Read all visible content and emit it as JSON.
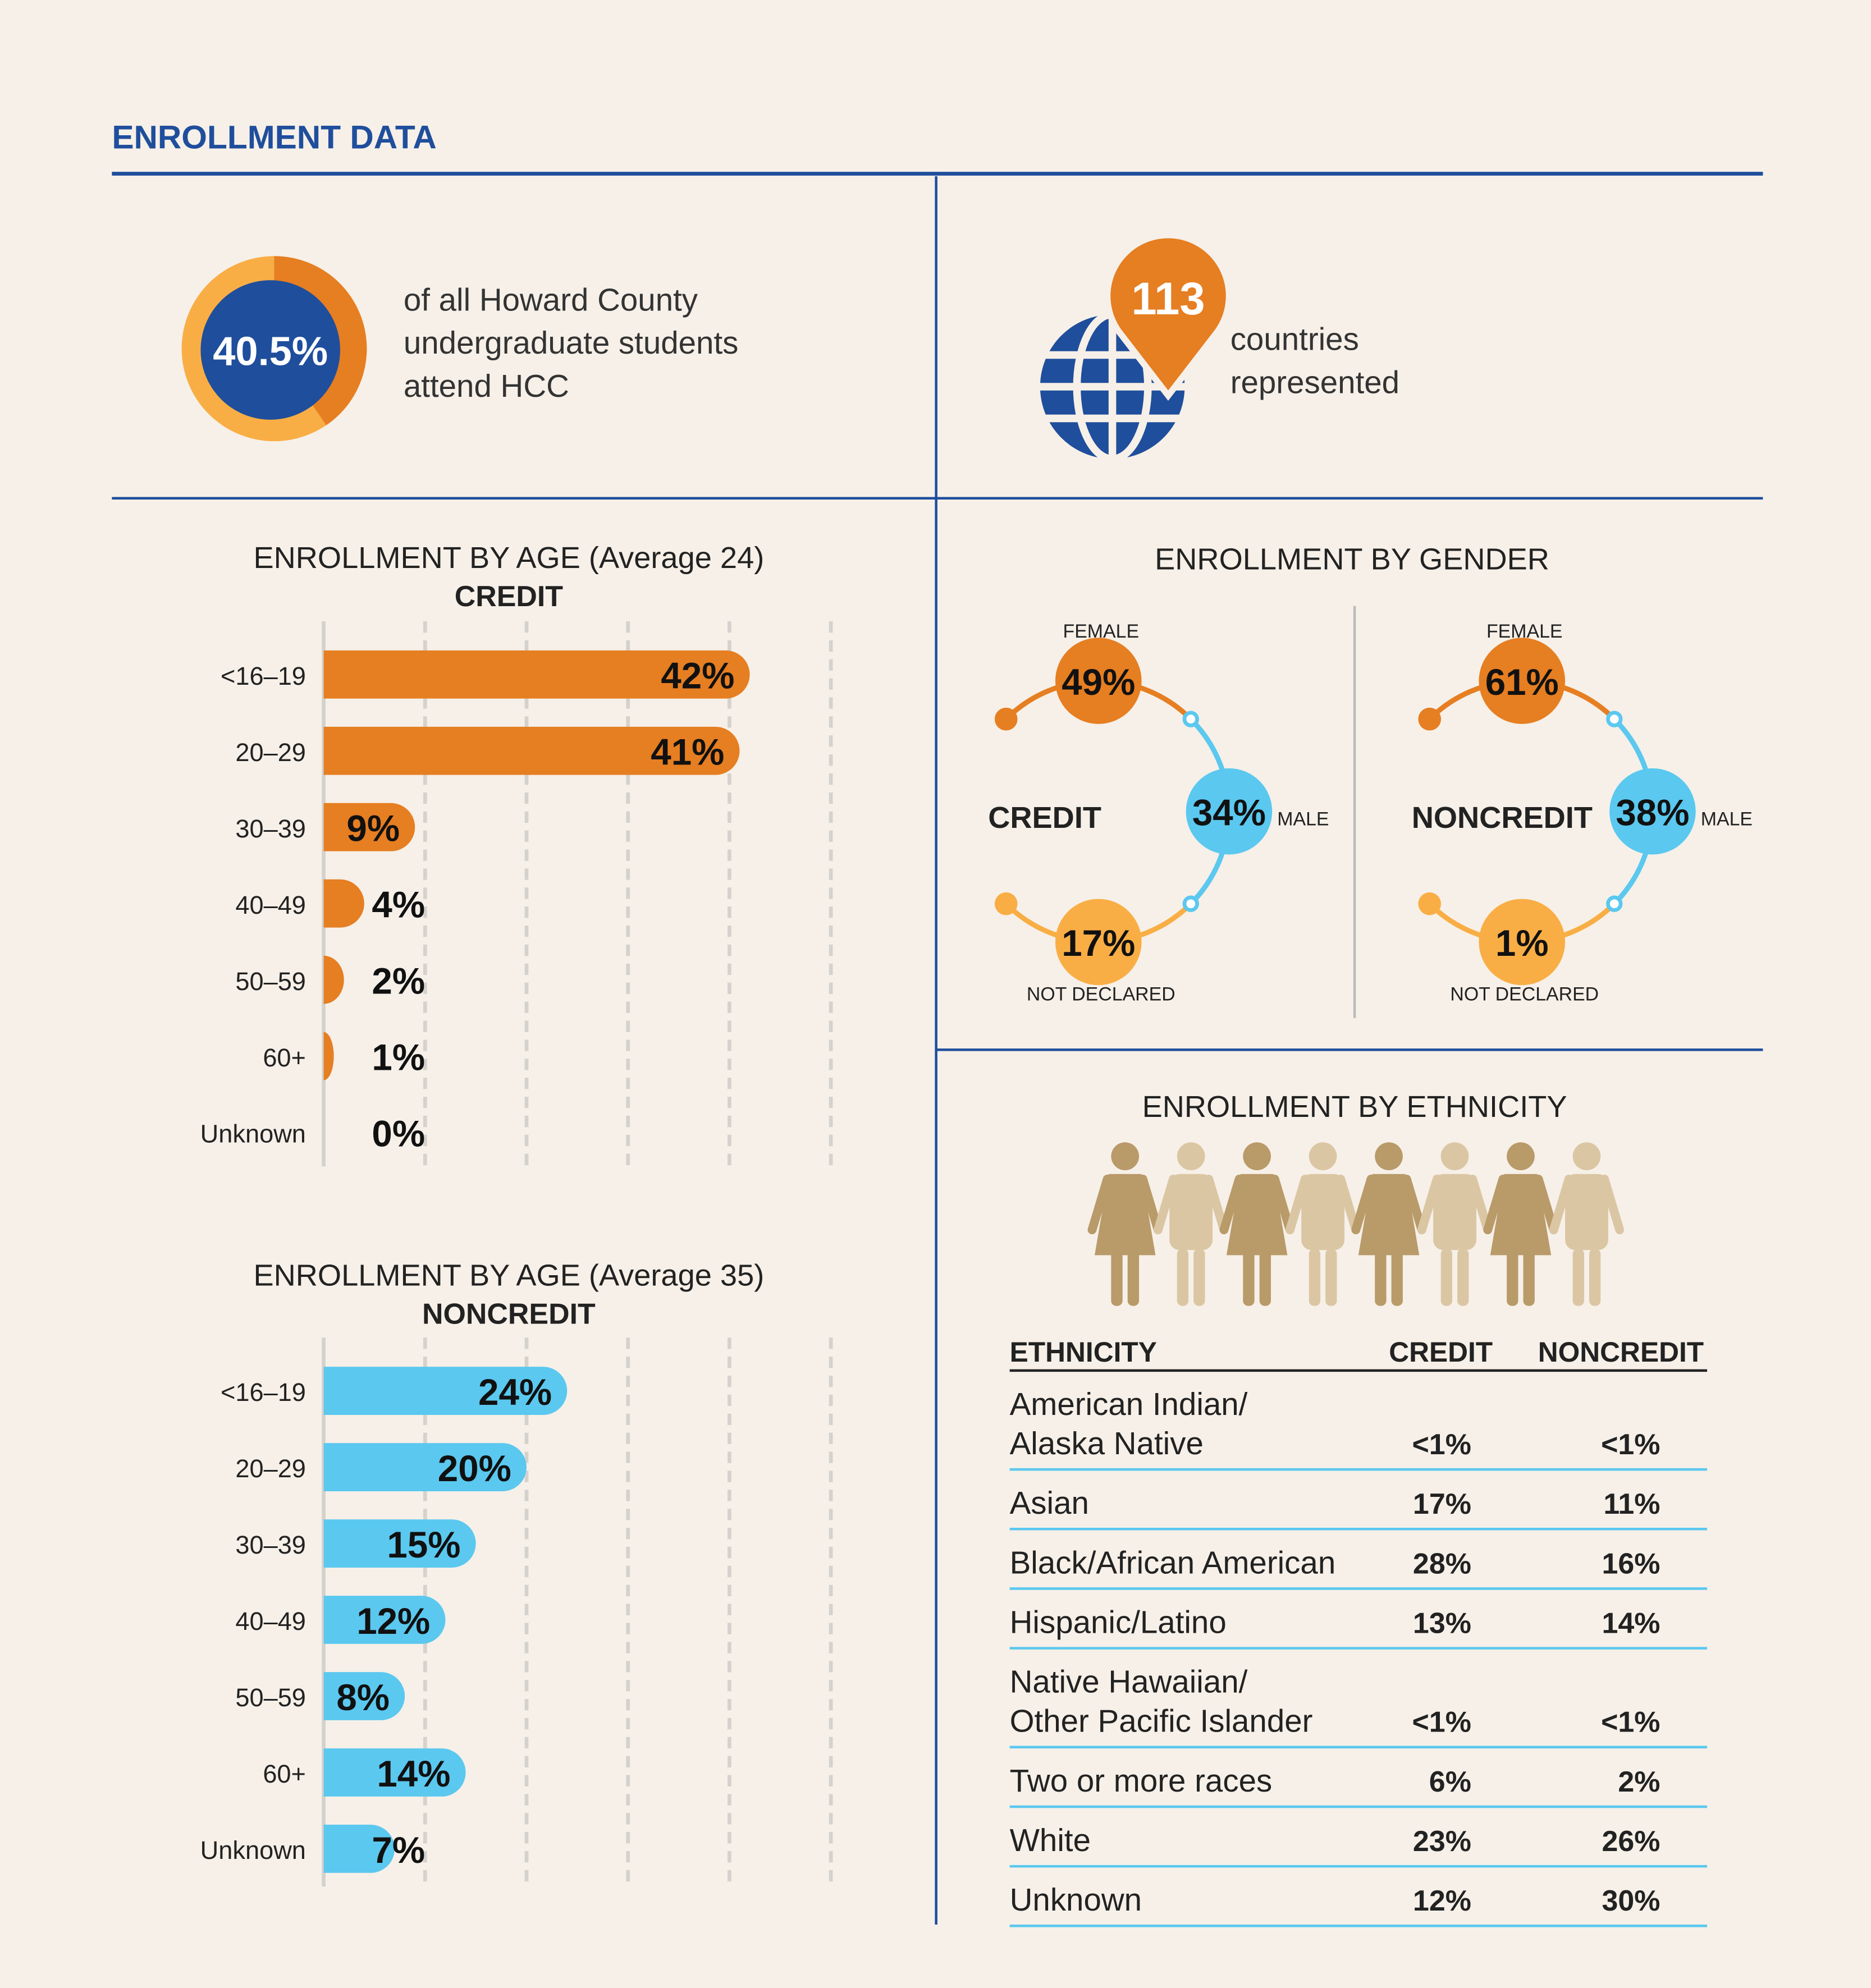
{
  "header": {
    "title": "ENROLLMENT DATA"
  },
  "share": {
    "value": 40.5,
    "value_label": "40.5%",
    "lines": [
      "of all Howard County",
      "undergraduate students",
      "attend HCC"
    ]
  },
  "countries": {
    "value": 113,
    "lines": [
      "countries",
      "represented"
    ]
  },
  "gender_section": {
    "title": "ENROLLMENT BY GENDER"
  },
  "chart_data": [
    {
      "type": "bar",
      "orientation": "horizontal",
      "title": "ENROLLMENT BY AGE (Average 24)",
      "subtitle": "CREDIT",
      "categories": [
        "<16–19",
        "20–29",
        "30–39",
        "40–49",
        "50–59",
        "60+",
        "Unknown"
      ],
      "values": [
        42,
        41,
        9,
        4,
        2,
        1,
        0
      ],
      "value_labels": [
        "42%",
        "41%",
        "9%",
        "4%",
        "2%",
        "1%",
        "0%"
      ],
      "color": "#e67e22",
      "xlim": [
        0,
        50
      ],
      "grid": true
    },
    {
      "type": "bar",
      "orientation": "horizontal",
      "title": "ENROLLMENT BY AGE (Average 35)",
      "subtitle": "NONCREDIT",
      "categories": [
        "<16–19",
        "20–29",
        "30–39",
        "40–49",
        "50–59",
        "60+",
        "Unknown"
      ],
      "values": [
        24,
        20,
        15,
        12,
        8,
        14,
        7
      ],
      "value_labels": [
        "24%",
        "20%",
        "15%",
        "12%",
        "8%",
        "14%",
        "7%"
      ],
      "color": "#5bc8ef",
      "xlim": [
        0,
        50
      ],
      "grid": true
    },
    {
      "type": "gender",
      "title": "CREDIT",
      "categories": [
        "FEMALE",
        "MALE",
        "NOT DECLARED"
      ],
      "values": [
        49,
        34,
        17
      ],
      "value_labels": [
        "49%",
        "34%",
        "17%"
      ],
      "colors": [
        "#e67e22",
        "#5bc8ef",
        "#f9ae45"
      ]
    },
    {
      "type": "gender",
      "title": "NONCREDIT",
      "categories": [
        "FEMALE",
        "MALE",
        "NOT DECLARED"
      ],
      "values": [
        61,
        38,
        1
      ],
      "value_labels": [
        "61%",
        "38%",
        "1%"
      ],
      "colors": [
        "#e67e22",
        "#5bc8ef",
        "#f9ae45"
      ]
    }
  ],
  "ethnicity": {
    "title": "ENROLLMENT BY ETHNICITY",
    "columns": [
      "ETHNICITY",
      "CREDIT",
      "NONCREDIT"
    ],
    "rows": [
      {
        "name": [
          "American Indian/",
          "Alaska Native"
        ],
        "credit": "<1%",
        "noncredit": "<1%"
      },
      {
        "name": [
          "Asian"
        ],
        "credit": "17%",
        "noncredit": "11%"
      },
      {
        "name": [
          "Black/African American"
        ],
        "credit": "28%",
        "noncredit": "16%"
      },
      {
        "name": [
          "Hispanic/Latino"
        ],
        "credit": "13%",
        "noncredit": "14%"
      },
      {
        "name": [
          "Native Hawaiian/",
          "Other Pacific Islander"
        ],
        "credit": "<1%",
        "noncredit": "<1%"
      },
      {
        "name": [
          "Two or more races"
        ],
        "credit": "6%",
        "noncredit": "2%"
      },
      {
        "name": [
          "White"
        ],
        "credit": "23%",
        "noncredit": "26%"
      },
      {
        "name": [
          "Unknown"
        ],
        "credit": "12%",
        "noncredit": "30%"
      }
    ]
  }
}
